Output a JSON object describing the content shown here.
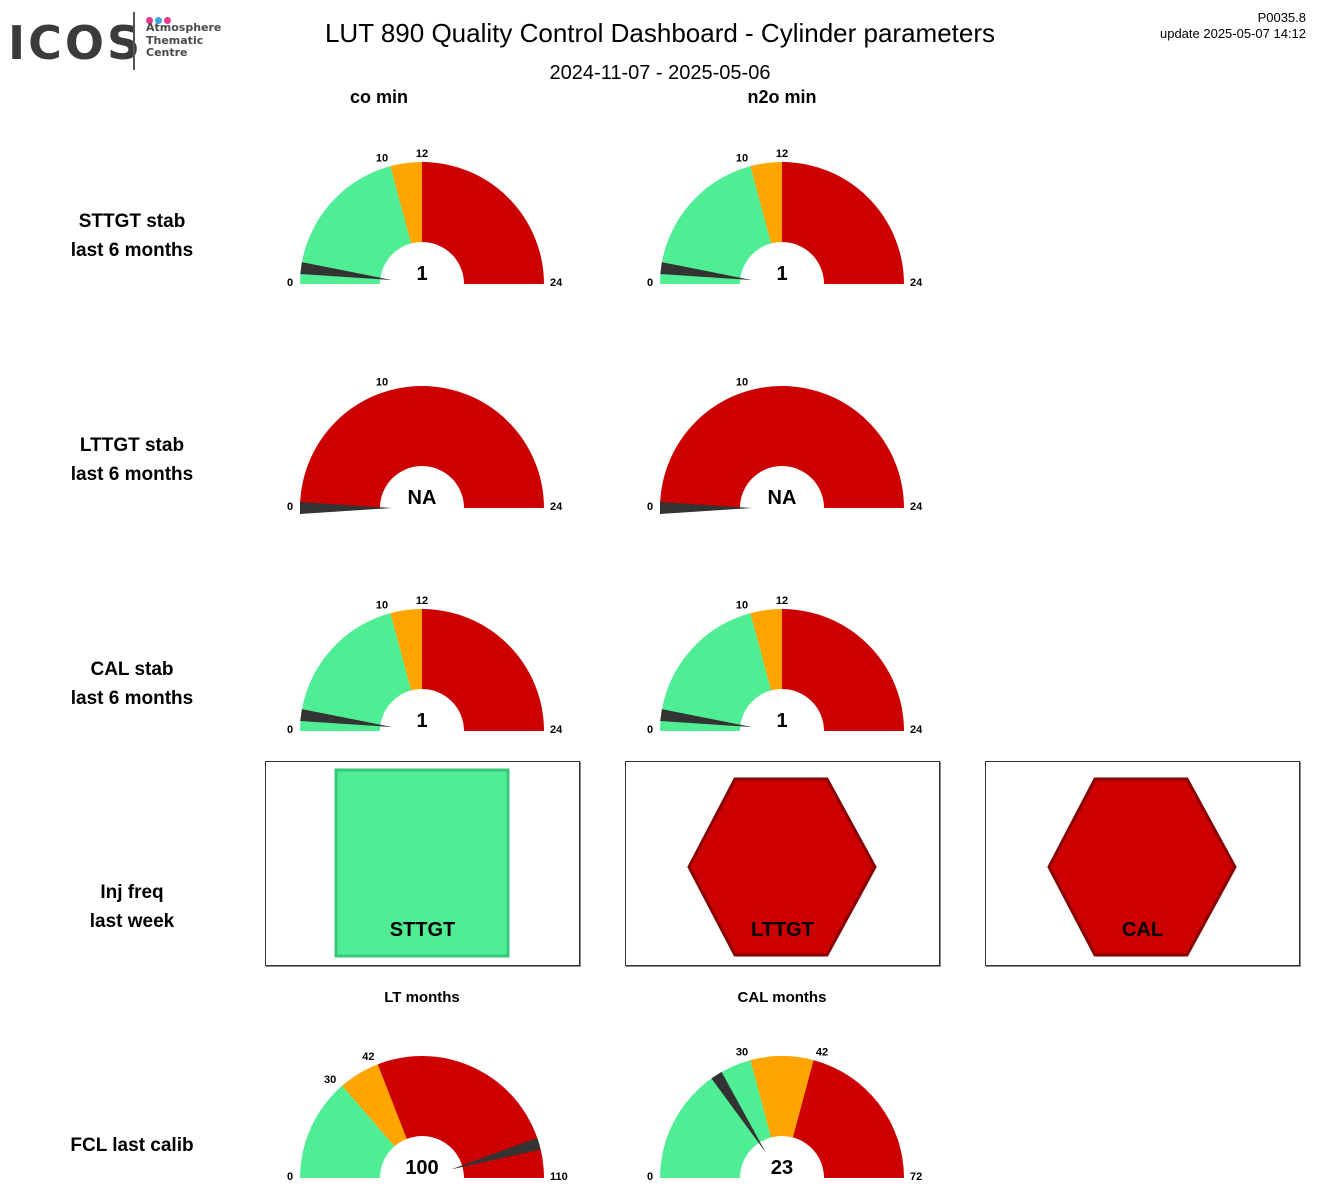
{
  "header": {
    "logo": {
      "wordmark": "ICOS",
      "line1": "Atmosphere",
      "line2": "Thematic",
      "line3": "Centre",
      "dot_colors": [
        "#e63a8a",
        "#3ea8e0",
        "#e63a8a"
      ]
    },
    "title": "LUT 890 Quality Control Dashboard - Cylinder parameters",
    "date_range": "2024-11-07 - 2025-05-06",
    "version": "P0035.8",
    "update": "update  2025-05-07 14:12"
  },
  "columns": [
    "co min",
    "n2o min"
  ],
  "rows": {
    "sttgt": {
      "line1": "STTGT stab",
      "line2": "last 6 months"
    },
    "lttgt": {
      "line1": "LTTGT stab",
      "line2": "last 6 months"
    },
    "cal": {
      "line1": "CAL stab",
      "line2": "last 6 months"
    },
    "inj": {
      "line1": "Inj freq",
      "line2": "last week"
    },
    "fcl": {
      "line1": "FCL last calib"
    }
  },
  "colors": {
    "green": "#50ee94",
    "orange": "#ffa500",
    "red": "#cc0000",
    "needle": "#333333"
  },
  "injection": [
    {
      "label": "STTGT",
      "shape": "square",
      "status": "green"
    },
    {
      "label": "LTTGT",
      "shape": "hexagon",
      "status": "red"
    },
    {
      "label": "CAL",
      "shape": "hexagon",
      "status": "red"
    }
  ],
  "chart_data": [
    {
      "type": "gauge",
      "row": "STTGT stab",
      "column": "co min",
      "min": 0,
      "max": 24,
      "value": 1,
      "value_text": "1",
      "bands": [
        {
          "from": 0,
          "to": 10,
          "color": "green"
        },
        {
          "from": 10,
          "to": 12,
          "color": "orange"
        },
        {
          "from": 12,
          "to": 24,
          "color": "red"
        }
      ],
      "tick_labels": [
        "0",
        "10",
        "12",
        "24"
      ]
    },
    {
      "type": "gauge",
      "row": "STTGT stab",
      "column": "n2o min",
      "min": 0,
      "max": 24,
      "value": 1,
      "value_text": "1",
      "bands": [
        {
          "from": 0,
          "to": 10,
          "color": "green"
        },
        {
          "from": 10,
          "to": 12,
          "color": "orange"
        },
        {
          "from": 12,
          "to": 24,
          "color": "red"
        }
      ],
      "tick_labels": [
        "0",
        "10",
        "12",
        "24"
      ]
    },
    {
      "type": "gauge",
      "row": "LTTGT stab",
      "column": "co min",
      "min": 0,
      "max": 24,
      "value": 0,
      "value_text": "NA",
      "bands": [
        {
          "from": 0,
          "to": 24,
          "color": "red"
        }
      ],
      "tick_labels": [
        "0",
        "10",
        "24"
      ]
    },
    {
      "type": "gauge",
      "row": "LTTGT stab",
      "column": "n2o min",
      "min": 0,
      "max": 24,
      "value": 0,
      "value_text": "NA",
      "bands": [
        {
          "from": 0,
          "to": 24,
          "color": "red"
        }
      ],
      "tick_labels": [
        "0",
        "10",
        "24"
      ]
    },
    {
      "type": "gauge",
      "row": "CAL stab",
      "column": "co min",
      "min": 0,
      "max": 24,
      "value": 1,
      "value_text": "1",
      "bands": [
        {
          "from": 0,
          "to": 10,
          "color": "green"
        },
        {
          "from": 10,
          "to": 12,
          "color": "orange"
        },
        {
          "from": 12,
          "to": 24,
          "color": "red"
        }
      ],
      "tick_labels": [
        "0",
        "10",
        "12",
        "24"
      ]
    },
    {
      "type": "gauge",
      "row": "CAL stab",
      "column": "n2o min",
      "min": 0,
      "max": 24,
      "value": 1,
      "value_text": "1",
      "bands": [
        {
          "from": 0,
          "to": 10,
          "color": "green"
        },
        {
          "from": 10,
          "to": 12,
          "color": "orange"
        },
        {
          "from": 12,
          "to": 24,
          "color": "red"
        }
      ],
      "tick_labels": [
        "0",
        "10",
        "12",
        "24"
      ]
    },
    {
      "type": "gauge",
      "row": "FCL last calib",
      "column": "LT months",
      "title": "LT months",
      "min": 0,
      "max": 110,
      "value": 100,
      "value_text": "100",
      "bands": [
        {
          "from": 0,
          "to": 30,
          "color": "green"
        },
        {
          "from": 30,
          "to": 42,
          "color": "orange"
        },
        {
          "from": 42,
          "to": 110,
          "color": "red"
        }
      ],
      "tick_labels": [
        "0",
        "30",
        "42",
        "110"
      ]
    },
    {
      "type": "gauge",
      "row": "FCL last calib",
      "column": "CAL months",
      "title": "CAL months",
      "min": 0,
      "max": 72,
      "value": 23,
      "value_text": "23",
      "bands": [
        {
          "from": 0,
          "to": 30,
          "color": "green"
        },
        {
          "from": 30,
          "to": 42,
          "color": "orange"
        },
        {
          "from": 42,
          "to": 72,
          "color": "red"
        }
      ],
      "tick_labels": [
        "0",
        "30",
        "42",
        "72"
      ]
    }
  ]
}
